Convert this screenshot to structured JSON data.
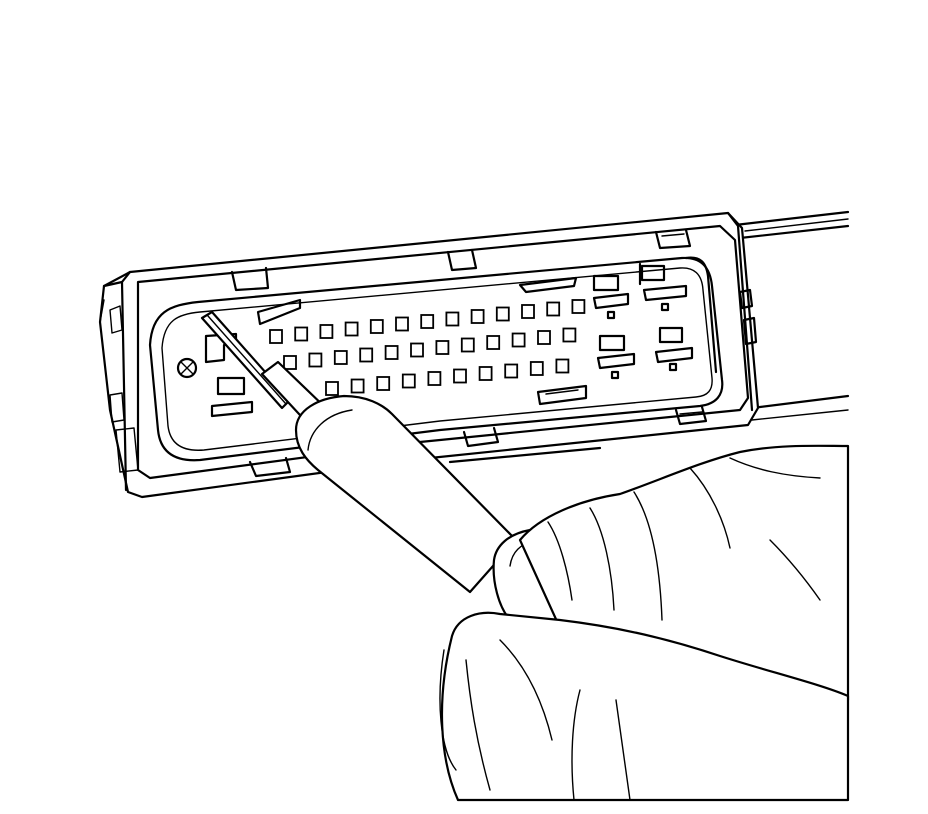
{
  "illustration": {
    "colors": {
      "line": "#000000",
      "background": "#ffffff"
    },
    "pin_rows": [
      13,
      12,
      10
    ],
    "parts": [
      "connector-body",
      "terminal-cavities",
      "release-tool",
      "gloved-hand",
      "wiring-harness"
    ]
  }
}
